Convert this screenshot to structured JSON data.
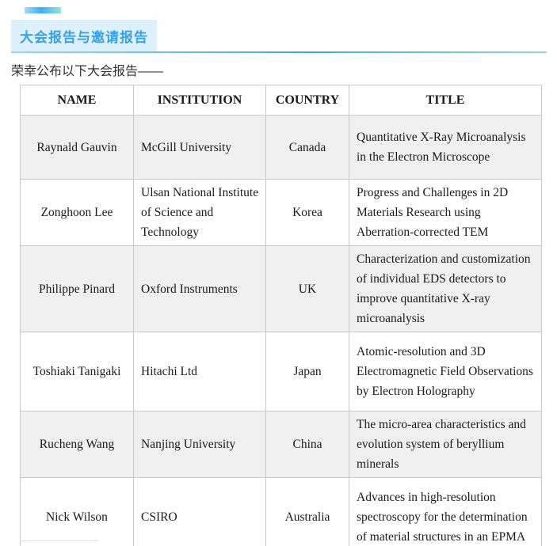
{
  "page": {
    "section_title": "大会报告与邀请报告",
    "intro_text": "荣幸公布以下大会报告——"
  },
  "colors": {
    "accent_blue": "#38a0e4",
    "title_box_bg": "#ddf1fc",
    "accent_gradient_start": "#a4dafb",
    "accent_gradient_mid": "#3fadf5",
    "accent_gradient_end": "#98e2d8",
    "table_border": "#c9c9c9",
    "alt_row_bg": "#f0f0f0"
  },
  "table": {
    "headers": [
      "NAME",
      "INSTITUTION",
      "COUNTRY",
      "TITLE"
    ],
    "rows": [
      {
        "name": "Raynald Gauvin",
        "institution": "McGill University",
        "country": "Canada",
        "title": "Quantitative X-Ray Microanalysis in the Electron Microscope"
      },
      {
        "name": "Zonghoon Lee",
        "institution": "Ulsan National Institute of Science and Technology",
        "country": "Korea",
        "title": "Progress and Challenges in 2D Materials Research using Aberration-corrected TEM"
      },
      {
        "name": "Philippe Pinard",
        "institution": "Oxford Instruments",
        "country": "UK",
        "title": "Characterization and customization of individual EDS detectors to improve quantitative X-ray microanalysis"
      },
      {
        "name": "Toshiaki Tanigaki",
        "institution": "Hitachi Ltd",
        "country": "Japan",
        "title": "Atomic-resolution and 3D Electromagnetic Field Observations by Electron Holography"
      },
      {
        "name": "Rucheng Wang",
        "institution": "Nanjing University",
        "country": "China",
        "title": "The micro-area characteristics and evolution system of beryllium minerals"
      },
      {
        "name": "Nick Wilson",
        "institution": "CSIRO",
        "country": "Australia",
        "title": "Advances in high-resolution spectroscopy for the determination of material structures in an EPMA"
      }
    ]
  }
}
